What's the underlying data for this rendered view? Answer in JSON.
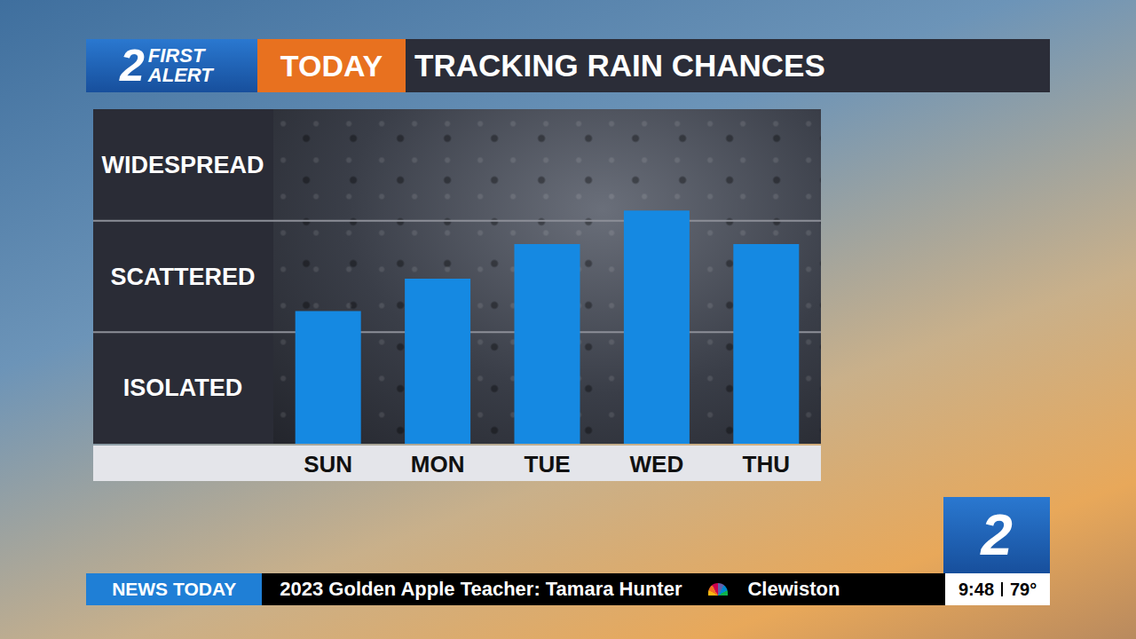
{
  "header": {
    "logo": {
      "number": "2",
      "line1": "FIRST",
      "line2": "ALERT"
    },
    "tag": "TODAY",
    "title": "TRACKING RAIN CHANCES"
  },
  "chart_data": {
    "type": "bar",
    "categories": [
      "SUN",
      "MON",
      "TUE",
      "WED",
      "THU"
    ],
    "values": [
      1.19,
      1.48,
      1.79,
      2.09,
      1.79
    ],
    "color": "#1589e2",
    "ylim": [
      0,
      3
    ],
    "yticks": [
      {
        "value": 0.5,
        "label": "ISOLATED"
      },
      {
        "value": 1.5,
        "label": "SCATTERED"
      },
      {
        "value": 2.5,
        "label": "WIDESPREAD"
      }
    ],
    "grid": true
  },
  "station": "2",
  "ticker": {
    "label": "NEWS TODAY",
    "items": [
      "2023 Golden Apple Teacher: Tamara Hunter",
      "Clewiston"
    ]
  },
  "clock": {
    "time": "9:48",
    "temperature": "79°"
  }
}
